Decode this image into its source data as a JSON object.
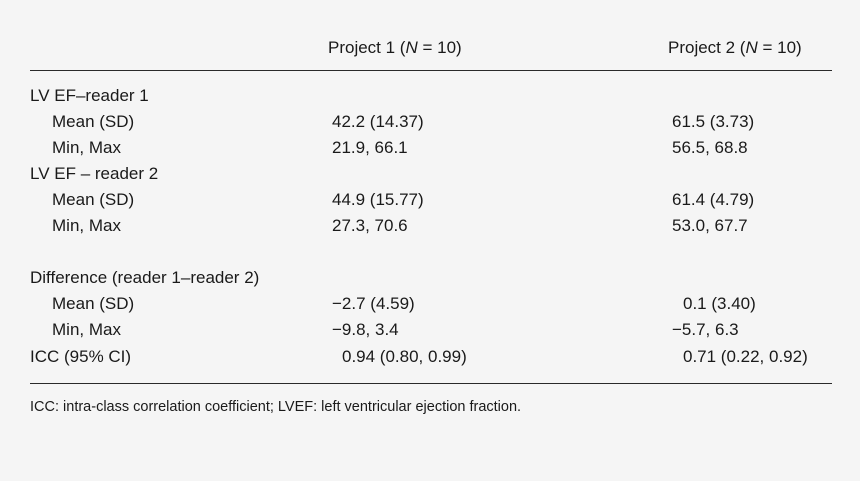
{
  "table": {
    "header": {
      "col1_prefix": "Project 1 (",
      "col1_n": "N",
      "col1_suffix": " = 10)",
      "col2_prefix": "Project 2 (",
      "col2_n": "N",
      "col2_suffix": " = 10)"
    },
    "rows": [
      {
        "label": "LV EF–reader 1",
        "indent": false,
        "v1": "",
        "v2": ""
      },
      {
        "label": "Mean (SD)",
        "indent": true,
        "v1": "42.2 (14.37)",
        "v2": "61.5 (3.73)"
      },
      {
        "label": "Min, Max",
        "indent": true,
        "v1": "21.9, 66.1",
        "v2": "56.5, 68.8"
      },
      {
        "label": "LV EF – reader 2",
        "indent": false,
        "v1": "",
        "v2": ""
      },
      {
        "label": "Mean (SD)",
        "indent": true,
        "v1": "44.9 (15.77)",
        "v2": "61.4 (4.79)"
      },
      {
        "label": "Min, Max",
        "indent": true,
        "v1": "27.3, 70.6",
        "v2": "53.0, 67.7"
      },
      {
        "label": "Difference (reader 1–reader 2)",
        "indent": false,
        "v1": "",
        "v2": ""
      },
      {
        "label": "Mean (SD)",
        "indent": true,
        "v1": "−2.7 (4.59)",
        "v2": "0.1 (3.40)"
      },
      {
        "label": "Min, Max",
        "indent": true,
        "v1": "−9.8, 3.4",
        "v2": "−5.7, 6.3"
      },
      {
        "label": "ICC (95% CI)",
        "indent": false,
        "v1": "0.94 (0.80, 0.99)",
        "v2": "0.71 (0.22, 0.92)"
      }
    ],
    "footnote": "ICC: intra-class correlation coefficient; LVEF: left ventricular ejection fraction."
  }
}
